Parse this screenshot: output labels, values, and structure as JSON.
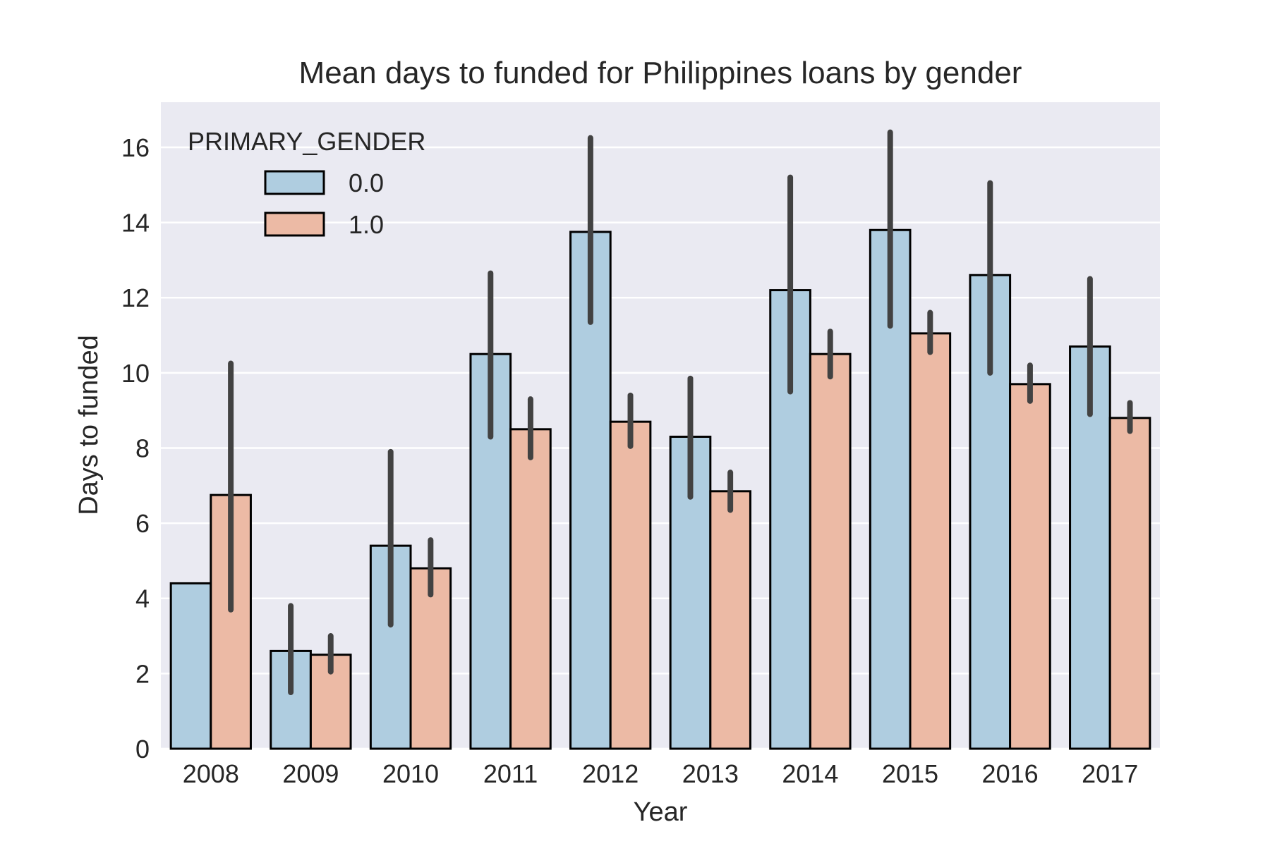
{
  "chart_data": {
    "type": "bar",
    "title": "Mean days to funded for Philippines loans by gender",
    "xlabel": "Year",
    "ylabel": "Days to funded",
    "ylim": [
      0,
      17.2
    ],
    "yticks": [
      0,
      2,
      4,
      6,
      8,
      10,
      12,
      14,
      16
    ],
    "grid": true,
    "legend": {
      "title": "PRIMARY_GENDER",
      "position": "top-left"
    },
    "categories": [
      "2008",
      "2009",
      "2010",
      "2011",
      "2012",
      "2013",
      "2014",
      "2015",
      "2016",
      "2017"
    ],
    "series": [
      {
        "name": "0.0",
        "color": "#afcde0",
        "values": [
          4.4,
          2.6,
          5.4,
          10.5,
          13.75,
          8.3,
          12.2,
          13.8,
          12.6,
          10.7
        ],
        "ci_low": [
          null,
          1.5,
          3.3,
          8.3,
          11.35,
          6.7,
          9.5,
          11.25,
          10.0,
          8.9
        ],
        "ci_high": [
          null,
          3.8,
          7.9,
          12.65,
          16.25,
          9.85,
          15.2,
          16.4,
          15.05,
          12.5
        ]
      },
      {
        "name": "1.0",
        "color": "#ecbaa5",
        "values": [
          6.75,
          2.5,
          4.8,
          8.5,
          8.7,
          6.85,
          10.5,
          11.05,
          9.7,
          8.8
        ],
        "ci_low": [
          3.7,
          2.05,
          4.1,
          7.75,
          8.05,
          6.35,
          9.9,
          10.55,
          9.25,
          8.45
        ],
        "ci_high": [
          10.25,
          3.0,
          5.55,
          9.3,
          9.4,
          7.35,
          11.1,
          11.6,
          10.2,
          9.2
        ]
      }
    ],
    "colors": {
      "background": "#eaeaf2",
      "grid": "#ffffff",
      "bar_edge": "#000000",
      "error_bar": "#424242"
    }
  }
}
